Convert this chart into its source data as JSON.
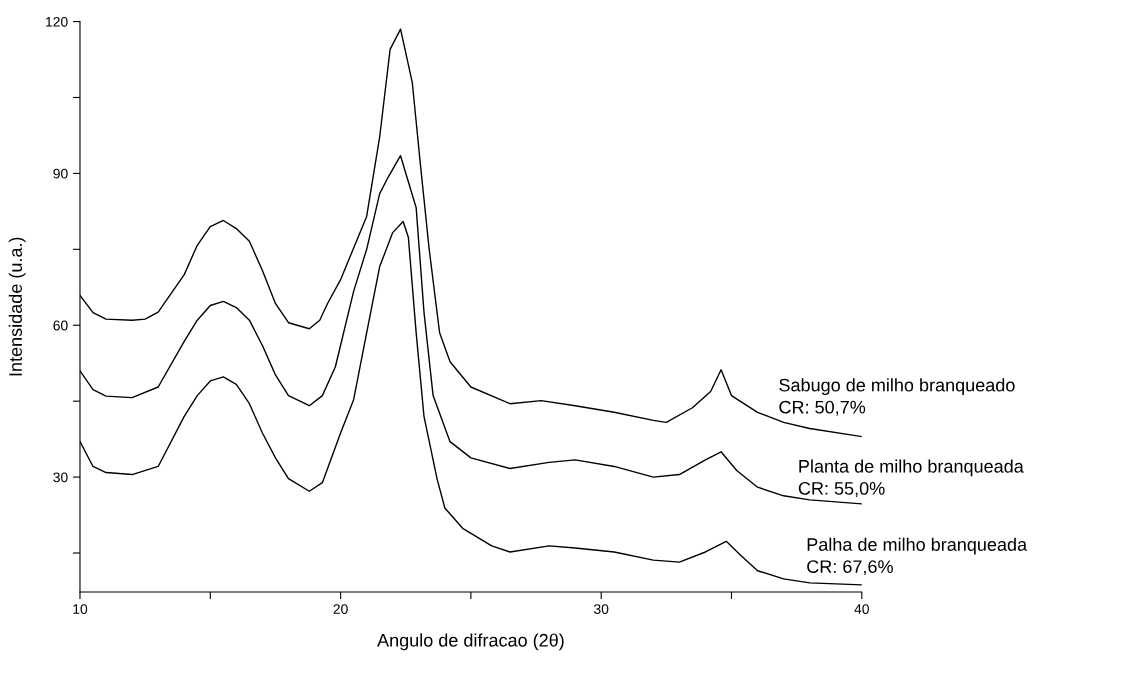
{
  "chart_data": {
    "type": "line",
    "xlabel": "Angulo de difracao (2θ)",
    "ylabel": "Intensidade (u.a.)",
    "xlim": [
      10,
      40
    ],
    "xticks": [
      10,
      {
        "value": 15,
        "label": null
      },
      20,
      {
        "value": 25,
        "label": null
      },
      30,
      {
        "value": 35,
        "label": null
      },
      40
    ],
    "ylim": [
      7.3,
      120
    ],
    "yticks": [
      {
        "value": 15,
        "label": null
      },
      30,
      {
        "value": 45,
        "label": null
      },
      60,
      {
        "value": 75,
        "label": null
      },
      90,
      {
        "value": 105,
        "label": null
      },
      120
    ],
    "grid": false,
    "legend": false,
    "marker": "none",
    "line_style": "solid",
    "series": [
      {
        "name": "Sabugo de milho branqueado",
        "color": "#000000",
        "x": [
          10,
          10.5,
          11,
          12,
          12.5,
          13,
          14,
          14.5,
          15,
          15.5,
          16,
          16.5,
          17,
          17.5,
          18,
          18.8,
          19.2,
          19.5,
          20,
          21,
          21.5,
          21.9,
          22.3,
          22.75,
          23.07,
          23.4,
          23.8,
          24.2,
          25,
          26.5,
          27.7,
          29,
          30.5,
          32,
          32.5,
          33.5,
          34.2,
          34.6,
          35,
          36,
          37,
          38,
          40
        ],
        "values": [
          65.9,
          62.5,
          61.2,
          61,
          61.2,
          62.6,
          70,
          75.8,
          79.5,
          80.7,
          79.1,
          76.6,
          70.8,
          64.3,
          60.5,
          59.3,
          61,
          64.3,
          69,
          81.5,
          97.2,
          114.5,
          118.5,
          108,
          91.4,
          75,
          58.5,
          52.8,
          47.8,
          44.5,
          45.1,
          44.1,
          42.8,
          41.2,
          40.8,
          43.7,
          46.9,
          51.2,
          46.1,
          42.8,
          40.8,
          39.6,
          38
        ]
      },
      {
        "name": "Planta de milho branqueada",
        "color": "#000000",
        "x": [
          10,
          10.5,
          11,
          12,
          13,
          14,
          14.5,
          15,
          15.5,
          16,
          16.5,
          17,
          17.5,
          18,
          18.8,
          19.3,
          19.8,
          20.5,
          21,
          21.5,
          21.8,
          22.3,
          22.9,
          23.2,
          23.55,
          24.2,
          25,
          26.5,
          28,
          29,
          30.5,
          32,
          33,
          34,
          34.6,
          35.2,
          36,
          37,
          38,
          40
        ],
        "values": [
          51,
          47.3,
          46,
          45.7,
          47.8,
          56.8,
          61,
          63.9,
          64.7,
          63.5,
          61,
          56,
          50.2,
          46.1,
          44.1,
          46.1,
          51.8,
          66.7,
          75,
          86,
          89,
          93.5,
          83.2,
          62.6,
          46.1,
          37,
          33.8,
          31.7,
          32.9,
          33.4,
          32.1,
          30,
          30.5,
          33.4,
          35,
          31.3,
          28,
          26.3,
          25.5,
          24.7
        ]
      },
      {
        "name": "Palha de milho branqueada",
        "color": "#000000",
        "x": [
          10,
          10.5,
          11,
          12,
          13,
          14,
          14.5,
          15,
          15.5,
          16,
          16.5,
          17,
          17.5,
          18,
          18.8,
          19.3,
          20,
          20.5,
          21,
          21.5,
          22,
          22.4,
          22.6,
          22.9,
          23.2,
          23.7,
          24,
          24.7,
          25.8,
          26.5,
          28,
          29,
          30.5,
          32,
          33,
          34,
          34.8,
          35.3,
          36,
          37,
          38,
          40
        ],
        "values": [
          37,
          32.1,
          30.9,
          30.5,
          32.1,
          42,
          46.1,
          49,
          49.8,
          48.3,
          44.5,
          38.7,
          33.8,
          29.7,
          27.2,
          28.9,
          38.7,
          45.3,
          58.5,
          71.6,
          78.3,
          80.5,
          77.4,
          58.5,
          42,
          29.7,
          23.9,
          19.8,
          16.4,
          15.2,
          16.4,
          16,
          15.2,
          13.6,
          13.2,
          15.2,
          17.3,
          14.8,
          11.5,
          9.9,
          9.1,
          8.7
        ]
      }
    ],
    "annotations": [
      "CR: 50,7%",
      "CR: 55,0%",
      "CR: 67,6%"
    ]
  }
}
